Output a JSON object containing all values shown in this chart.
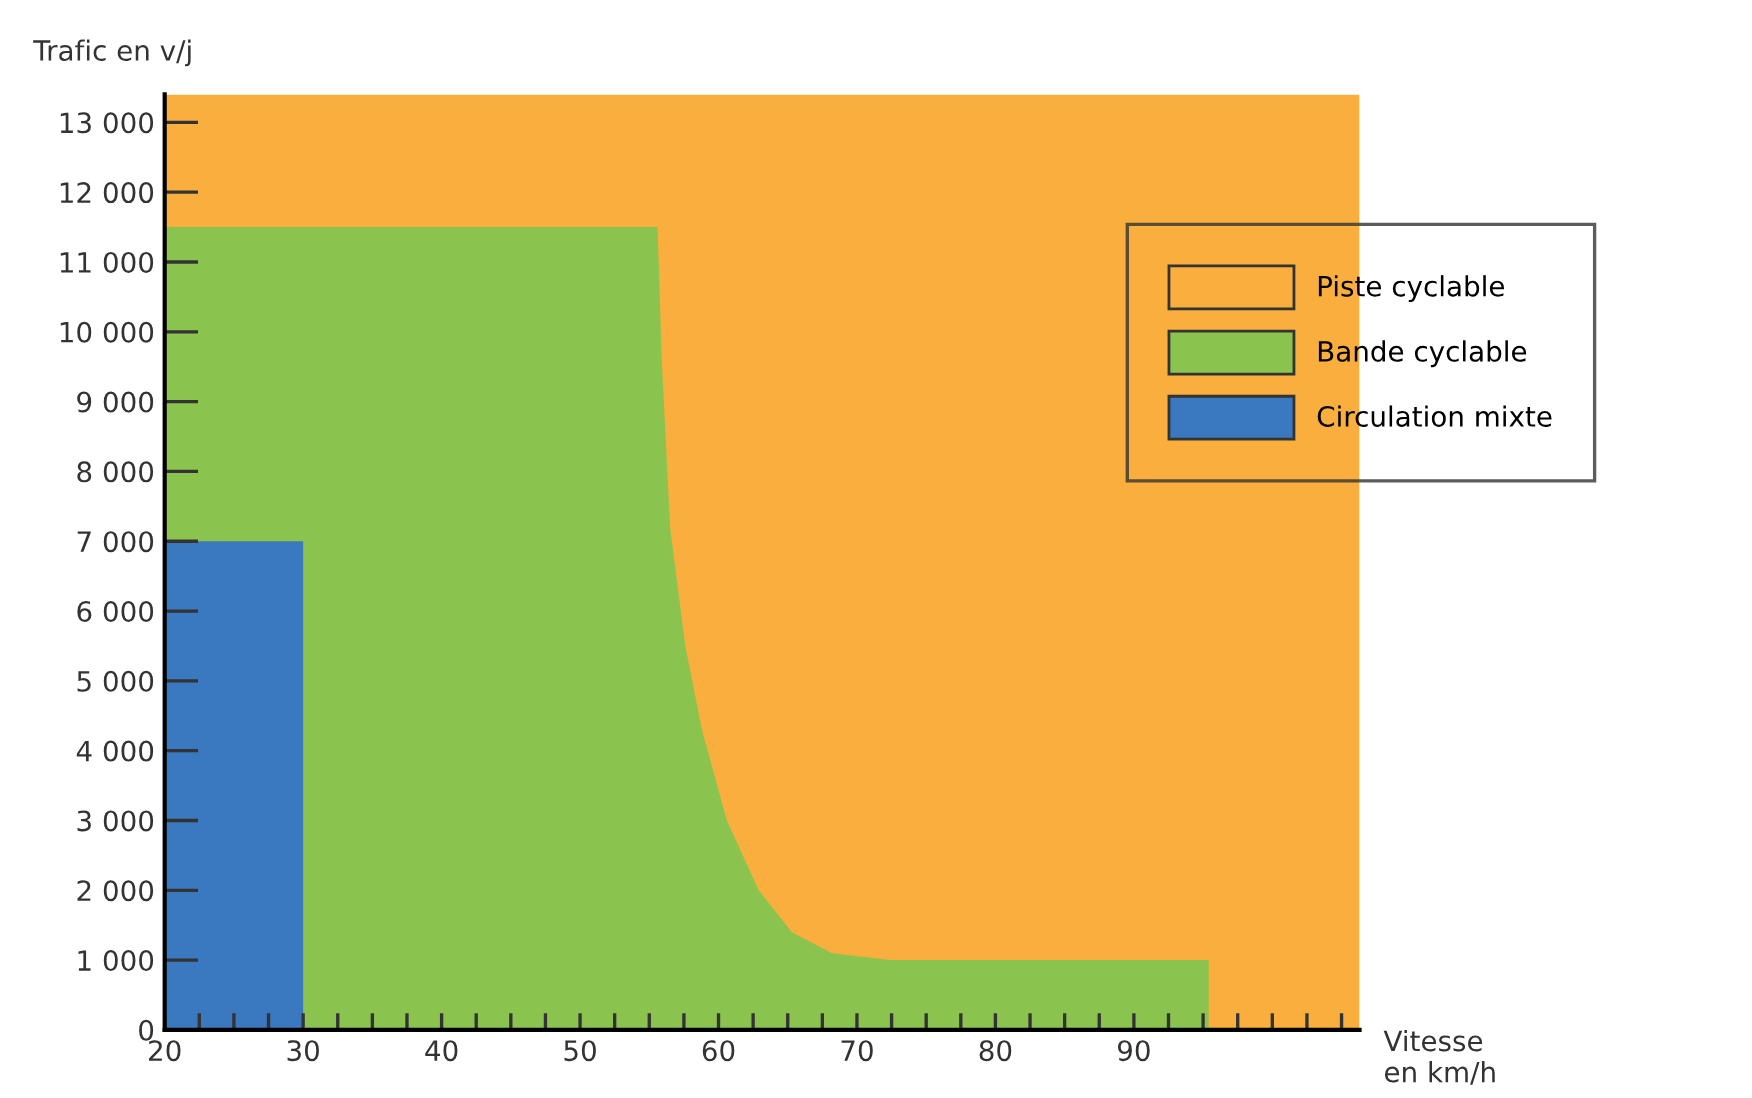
{
  "chart_data": {
    "type": "area",
    "ylabel": "Trafic en v/j",
    "xlabel": "Vitesse\nen km/h",
    "series": [
      {
        "name": "Bande cyclable",
        "color": "#8bc34f",
        "x": [
          20,
          55.6,
          55.9,
          56.5,
          57.6,
          58.8,
          60.6,
          62.9,
          65.3,
          68.2,
          72.4,
          95.4
        ],
        "values": [
          11500,
          11500,
          9600,
          7200,
          5500,
          4300,
          3000,
          2000,
          1400,
          1100,
          1000,
          1000
        ]
      },
      {
        "name": "Circulation mixte",
        "color": "#3a78bf",
        "x": [
          20,
          30
        ],
        "values": [
          7000,
          7000
        ]
      }
    ],
    "xlim": [
      20,
      106.3
    ],
    "ylim": [
      0,
      13400
    ],
    "xticks": [
      20,
      {
        "value": 22.5,
        "label": null
      },
      {
        "value": 25,
        "label": null
      },
      {
        "value": 27.5,
        "label": null
      },
      30,
      {
        "value": 32.5,
        "label": null
      },
      {
        "value": 35,
        "label": null
      },
      {
        "value": 37.5,
        "label": null
      },
      40,
      {
        "value": 42.5,
        "label": null
      },
      {
        "value": 45,
        "label": null
      },
      {
        "value": 47.5,
        "label": null
      },
      50,
      {
        "value": 52.5,
        "label": null
      },
      {
        "value": 55,
        "label": null
      },
      {
        "value": 57.5,
        "label": null
      },
      60,
      {
        "value": 62.5,
        "label": null
      },
      {
        "value": 65,
        "label": null
      },
      {
        "value": 67.5,
        "label": null
      },
      70,
      {
        "value": 72.5,
        "label": null
      },
      {
        "value": 75,
        "label": null
      },
      {
        "value": 77.5,
        "label": null
      },
      80,
      {
        "value": 82.5,
        "label": null
      },
      {
        "value": 85,
        "label": null
      },
      {
        "value": 87.5,
        "label": null
      },
      90,
      {
        "value": 92.5,
        "label": null
      },
      {
        "value": 95,
        "label": null
      },
      {
        "value": 97.5,
        "label": null
      },
      {
        "value": 100,
        "label": null
      },
      {
        "value": 102.5,
        "label": null
      },
      {
        "value": 105,
        "label": null
      }
    ],
    "yticks": [
      0,
      {
        "value": 1000,
        "label": "1 000"
      },
      {
        "value": 2000,
        "label": "2 000"
      },
      {
        "value": 3000,
        "label": "3 000"
      },
      {
        "value": 4000,
        "label": "4 000"
      },
      {
        "value": 5000,
        "label": "5 000"
      },
      {
        "value": 6000,
        "label": "6 000"
      },
      {
        "value": 7000,
        "label": "7 000"
      },
      {
        "value": 8000,
        "label": "8 000"
      },
      {
        "value": 9000,
        "label": "9 000"
      },
      {
        "value": 10000,
        "label": "10 000"
      },
      {
        "value": 11000,
        "label": "11 000"
      },
      {
        "value": 12000,
        "label": "12 000"
      },
      {
        "value": 13000,
        "label": "13 000"
      }
    ],
    "bands": [
      {
        "axis": "x",
        "from": 20,
        "to": 106.3,
        "label": "Piste cyclable",
        "color": "#f9ae3d"
      }
    ],
    "grid": false,
    "legend": "top right"
  }
}
